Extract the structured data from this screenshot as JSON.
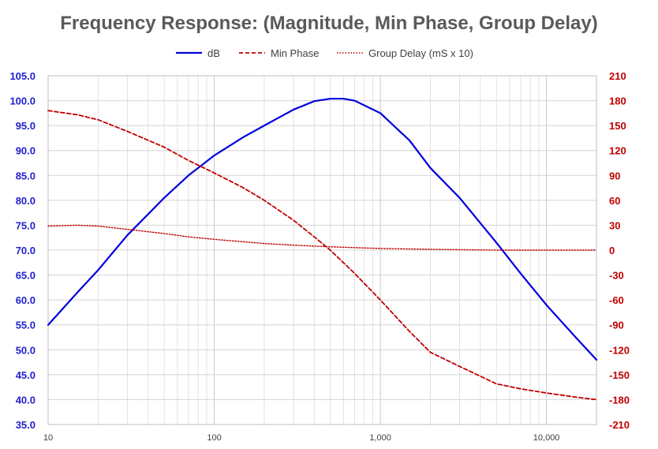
{
  "chart_data": {
    "type": "line",
    "title": "Frequency Response: (Magnitude, Min Phase, Group Delay)",
    "x_scale": "log",
    "xlim": [
      10,
      20000
    ],
    "x_ticks": [
      10,
      100,
      1000,
      10000
    ],
    "x_tick_labels": [
      "10",
      "100",
      "1,000",
      "10,000"
    ],
    "ylim_left": [
      35,
      105
    ],
    "y_left_ticks": [
      "35.0",
      "40.0",
      "45.0",
      "50.0",
      "55.0",
      "60.0",
      "65.0",
      "70.0",
      "75.0",
      "80.0",
      "85.0",
      "90.0",
      "95.0",
      "100.0",
      "105.0"
    ],
    "ylim_right": [
      -210,
      210
    ],
    "y_right_ticks": [
      "-210",
      "-180",
      "-150",
      "-120",
      "-90",
      "-60",
      "-30",
      "0",
      "30",
      "60",
      "90",
      "120",
      "150",
      "180",
      "210"
    ],
    "grid": true,
    "legend_position": "top",
    "series": [
      {
        "name": "dB",
        "axis": "left",
        "color": "#0000dd",
        "style": "solid",
        "x": [
          10,
          15,
          20,
          30,
          50,
          70,
          100,
          150,
          200,
          300,
          400,
          500,
          600,
          700,
          1000,
          1500,
          2000,
          3000,
          5000,
          7000,
          10000,
          15000,
          20000
        ],
        "y": [
          55.0,
          61.5,
          66.0,
          73.0,
          80.5,
          85.0,
          89.0,
          92.7,
          95.0,
          98.2,
          99.9,
          100.4,
          100.4,
          100.0,
          97.5,
          92.0,
          86.5,
          80.5,
          71.5,
          65.3,
          59.0,
          52.5,
          48.0
        ]
      },
      {
        "name": "Min Phase",
        "axis": "right",
        "color": "#c00000",
        "style": "dashed",
        "x": [
          10,
          15,
          20,
          30,
          50,
          70,
          100,
          150,
          200,
          300,
          400,
          500,
          700,
          1000,
          1500,
          2000,
          3000,
          5000,
          7000,
          10000,
          15000,
          20000
        ],
        "y": [
          168,
          163,
          157,
          143,
          124,
          108,
          93,
          75,
          60,
          36,
          16,
          0,
          -28,
          -60,
          -98,
          -123,
          -140,
          -161,
          -167,
          -172,
          -177,
          -180
        ]
      },
      {
        "name": "Group Delay (mS x 10)",
        "axis": "right",
        "color": "#c00000",
        "style": "dotted",
        "x": [
          10,
          15,
          20,
          30,
          50,
          70,
          100,
          200,
          300,
          500,
          1000,
          2000,
          5000,
          10000,
          20000
        ],
        "y": [
          29,
          30,
          29,
          25,
          20,
          16,
          13,
          8,
          6,
          4,
          2,
          1,
          0,
          0,
          0
        ]
      }
    ]
  }
}
